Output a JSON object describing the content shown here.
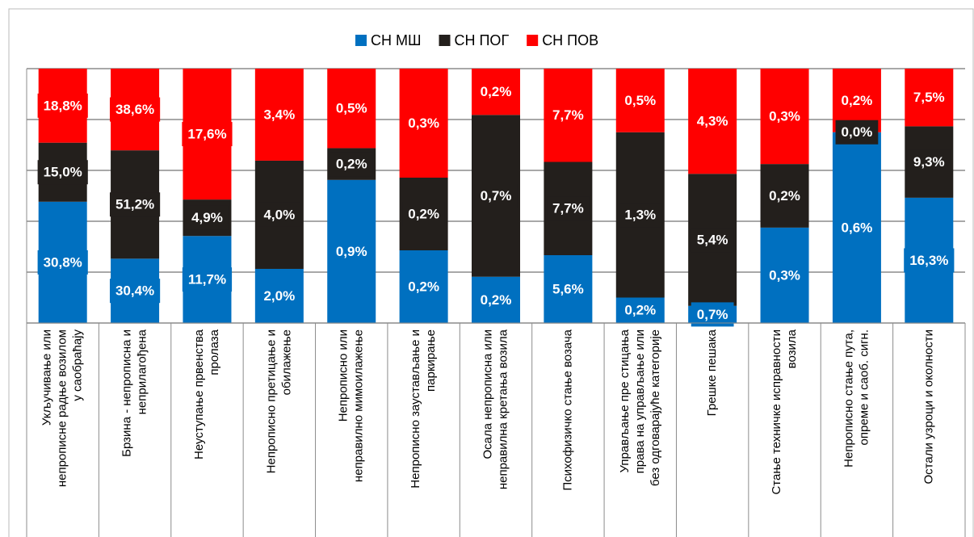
{
  "chart_data": {
    "type": "stacked_percent_bar",
    "categories": [
      "Укључивање или\nнепрописне радње возилом\nу саобраћају",
      "Брзина - непрописна и\nнеприлагођена",
      "Неуступање првенства\nпролаза",
      "Непрописно претицање и\nобилажење",
      "Непрописно или\nнеправилно мимоилажење",
      "Непрописно заустављање и\nпаркирање",
      "Осала непрописна или\nнеправилна кретања возила",
      "Психофизичко стање возача",
      "Управљање пре стицања\nправа на управљање или\nбез одговарајуће категорије",
      "Грешке пешака",
      "Стање техничке исправности\nвозила",
      "Непрописно стање пута,\nопреме и саоб. сигн.",
      "Остали узроци и околности"
    ],
    "series": [
      {
        "name": "СН МШ",
        "color": "#0070c0",
        "values": [
          30.8,
          30.4,
          11.7,
          2.0,
          0.9,
          0.2,
          0.2,
          5.6,
          0.2,
          0.7,
          0.3,
          0.6,
          16.3
        ],
        "value_labels": [
          "30,8%",
          "30,4%",
          "11,7%",
          "2,0%",
          "0,9%",
          "0,2%",
          "0,2%",
          "5,6%",
          "0,2%",
          "0,7%",
          "0,3%",
          "0,6%",
          "16,3%"
        ]
      },
      {
        "name": "СН ПОГ",
        "color": "#231f1c",
        "values": [
          15.0,
          51.2,
          4.9,
          4.0,
          0.2,
          0.2,
          0.7,
          7.7,
          1.3,
          5.4,
          0.2,
          0.0,
          9.3
        ],
        "value_labels": [
          "15,0%",
          "51,2%",
          "4,9%",
          "4,0%",
          "0,2%",
          "0,2%",
          "0,7%",
          "7,7%",
          "1,3%",
          "5,4%",
          "0,2%",
          "0,0%",
          "9,3%"
        ]
      },
      {
        "name": "СН ПОВ",
        "color": "#ff0000",
        "values": [
          18.8,
          38.6,
          17.6,
          3.4,
          0.5,
          0.3,
          0.2,
          7.7,
          0.5,
          4.3,
          0.3,
          0.2,
          7.5
        ],
        "value_labels": [
          "18,8%",
          "38,6%",
          "17,6%",
          "3,4%",
          "0,5%",
          "0,3%",
          "0,2%",
          "7,7%",
          "0,5%",
          "4,3%",
          "0,3%",
          "0,2%",
          "7,5%"
        ]
      }
    ],
    "ylim": [
      0,
      100
    ],
    "yticks": [
      0,
      20,
      40,
      60,
      80,
      100
    ],
    "grid": true,
    "legend": "top"
  }
}
